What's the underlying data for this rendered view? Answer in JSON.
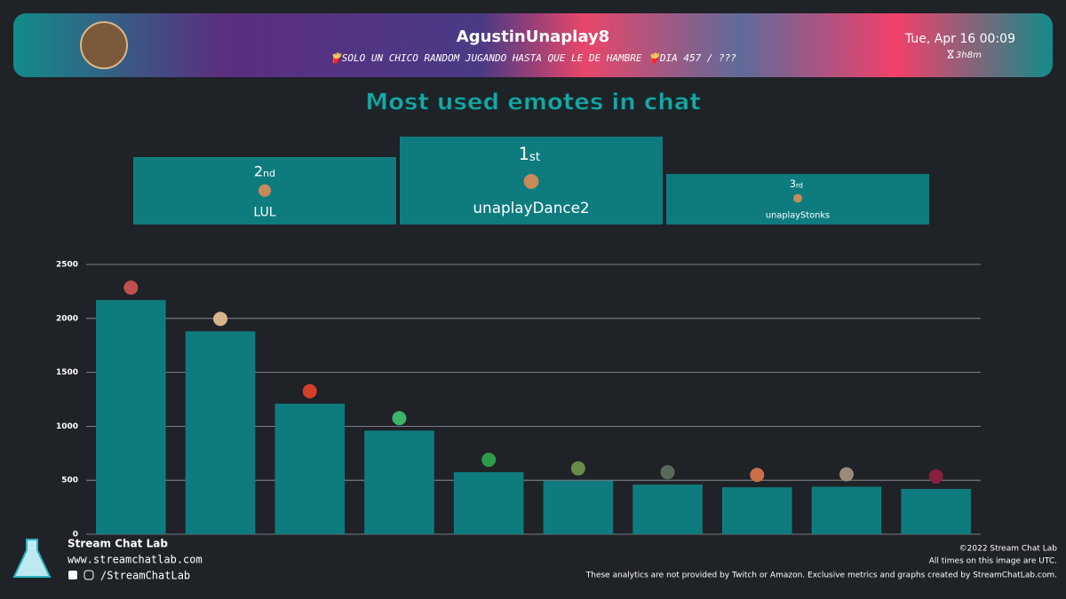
{
  "header": {
    "channel": "AgustinUnaplay8",
    "stream_title": "🍟SOLO UN CHICO RANDOM JUGANDO HASTA QUE LE DE HAMBRE 🍟DIA 457 / ???",
    "date": "Tue, Apr 16 00:09",
    "duration": "3h8m"
  },
  "podium": [
    {
      "rank": "2",
      "suffix": "nd",
      "name": "LUL"
    },
    {
      "rank": "1",
      "suffix": "st",
      "name": "unaplayDance2"
    },
    {
      "rank": "3",
      "suffix": "rd",
      "name": "unaplayStonks"
    }
  ],
  "chart_data": {
    "type": "bar",
    "title": "Most used emotes in chat",
    "values": [
      2170,
      1880,
      1210,
      960,
      575,
      495,
      460,
      435,
      440,
      420
    ],
    "color": "#0e7c7f",
    "ylim": [
      0,
      2500
    ],
    "yticks": [
      0,
      500,
      1000,
      1500,
      2000,
      2500
    ],
    "grid": true
  },
  "footer": {
    "brand": "Stream Chat Lab",
    "url": "www.streamchatlab.com",
    "social": "/StreamChatLab",
    "copyright": "©2022 Stream Chat Lab",
    "timezone": "All times on this image are UTC.",
    "disclaimer": "These analytics are not provided by Twitch or Amazon. Exclusive metrics and graphs created by StreamChatLab.com."
  }
}
